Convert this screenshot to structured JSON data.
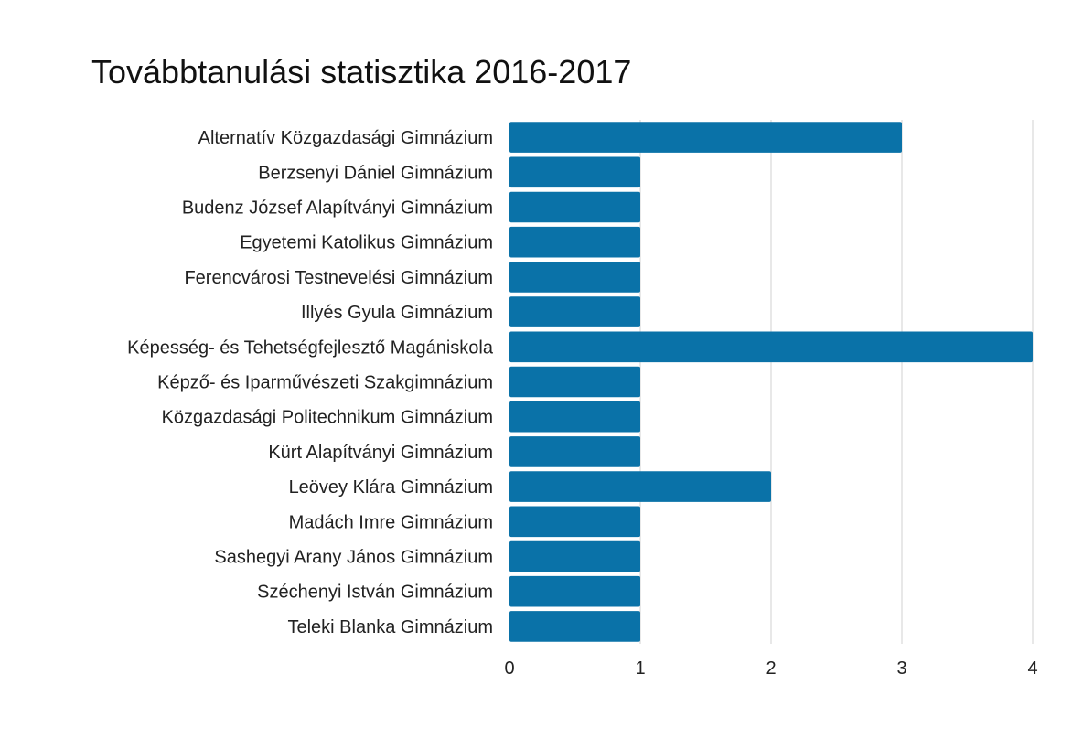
{
  "chart_data": {
    "type": "bar",
    "orientation": "horizontal",
    "title": "Továbbtanulási statisztika 2016-2017",
    "categories": [
      "Alternatív Közgazdasági Gimnázium",
      "Berzsenyi Dániel Gimnázium",
      "Budenz József Alapítványi Gimnázium",
      "Egyetemi Katolikus Gimnázium",
      "Ferencvárosi Testnevelési Gimnázium",
      "Illyés Gyula Gimnázium",
      "Képesség- és Tehetségfejlesztő Magániskola",
      "Képző- és Iparművészeti Szakgimnázium",
      "Közgazdasági Politechnikum Gimnázium",
      "Kürt Alapítványi Gimnázium",
      "Leövey Klára Gimnázium",
      "Madách Imre Gimnázium",
      "Sashegyi Arany János Gimnázium",
      "Széchenyi István Gimnázium",
      "Teleki Blanka Gimnázium"
    ],
    "values": [
      3,
      1,
      1,
      1,
      1,
      1,
      4,
      1,
      1,
      1,
      2,
      1,
      1,
      1,
      1
    ],
    "xlim": [
      0,
      4
    ],
    "xticks": [
      "0",
      "1",
      "2",
      "3",
      "4"
    ],
    "grid": true,
    "bar_color": "#0a72a8",
    "grid_color": "#d0d0d0"
  }
}
